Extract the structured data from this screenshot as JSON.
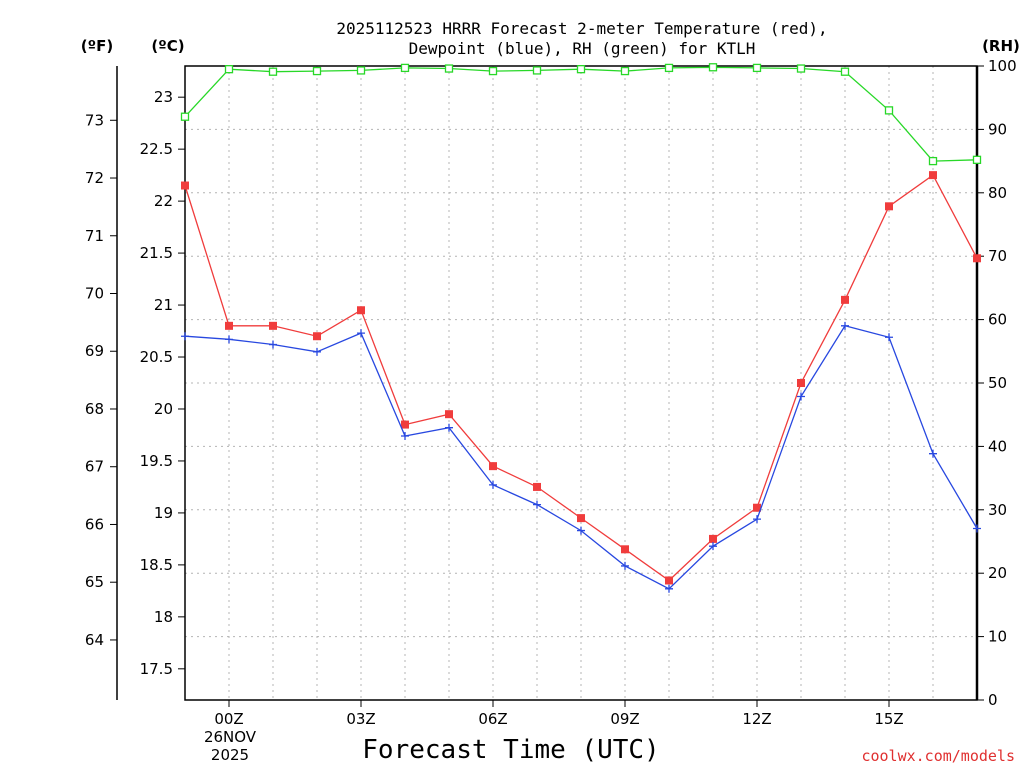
{
  "chart_data": {
    "type": "line",
    "title_line1": "2025112523 HRRR Forecast 2-meter Temperature (red),",
    "title_line2": "Dewpoint (blue), RH (green) for KTLH",
    "unit_f": "(ºF)",
    "unit_c": "(ºC)",
    "unit_rh": "(RH)",
    "xlabel": "Forecast Time (UTC)",
    "credit": "coolwx.com/models",
    "date_line1": "26NOV",
    "date_line2": "2025",
    "x_hours": [
      -1,
      0,
      1,
      2,
      3,
      4,
      5,
      6,
      7,
      8,
      9,
      10,
      11,
      12,
      13,
      14,
      15,
      16,
      17
    ],
    "x_ticks": [
      {
        "hour": 0,
        "label": "00Z"
      },
      {
        "hour": 3,
        "label": "03Z"
      },
      {
        "hour": 6,
        "label": "06Z"
      },
      {
        "hour": 9,
        "label": "09Z"
      },
      {
        "hour": 12,
        "label": "12Z"
      },
      {
        "hour": 15,
        "label": "15Z"
      }
    ],
    "xlim": [
      -1,
      17
    ],
    "c_lim": [
      17.2,
      23.3
    ],
    "c_ticks": [
      "17.5",
      "18",
      "18.5",
      "19",
      "19.5",
      "20",
      "20.5",
      "21",
      "21.5",
      "22",
      "22.5",
      "23"
    ],
    "f_ticks": [
      "64",
      "65",
      "66",
      "67",
      "68",
      "69",
      "70",
      "71",
      "72",
      "73"
    ],
    "rh_lim": [
      0,
      100
    ],
    "rh_ticks": [
      "0",
      "10",
      "20",
      "30",
      "40",
      "50",
      "60",
      "70",
      "80",
      "90",
      "100"
    ],
    "grid": true,
    "series": [
      {
        "name": "Temperature",
        "units": "C",
        "color": "#f03c3c",
        "marker": "filled-square",
        "values": [
          22.15,
          20.8,
          20.8,
          20.7,
          20.95,
          19.85,
          19.95,
          19.45,
          19.25,
          18.95,
          18.65,
          18.35,
          18.75,
          19.05,
          20.25,
          21.05,
          21.95,
          22.25,
          21.45
        ]
      },
      {
        "name": "Dewpoint",
        "units": "C",
        "color": "#2848e0",
        "marker": "plus",
        "values": [
          20.7,
          20.67,
          20.62,
          20.55,
          20.73,
          19.74,
          19.82,
          19.27,
          19.08,
          18.83,
          18.49,
          18.27,
          18.68,
          18.94,
          20.12,
          20.8,
          20.69,
          19.57,
          18.85
        ]
      },
      {
        "name": "RH",
        "units": "%",
        "color": "#28d828",
        "marker": "open-square",
        "values": [
          92,
          99.5,
          99.1,
          99.2,
          99.3,
          99.7,
          99.6,
          99.2,
          99.3,
          99.5,
          99.2,
          99.7,
          99.8,
          99.7,
          99.6,
          99.1,
          93,
          85,
          85.2
        ]
      }
    ]
  }
}
